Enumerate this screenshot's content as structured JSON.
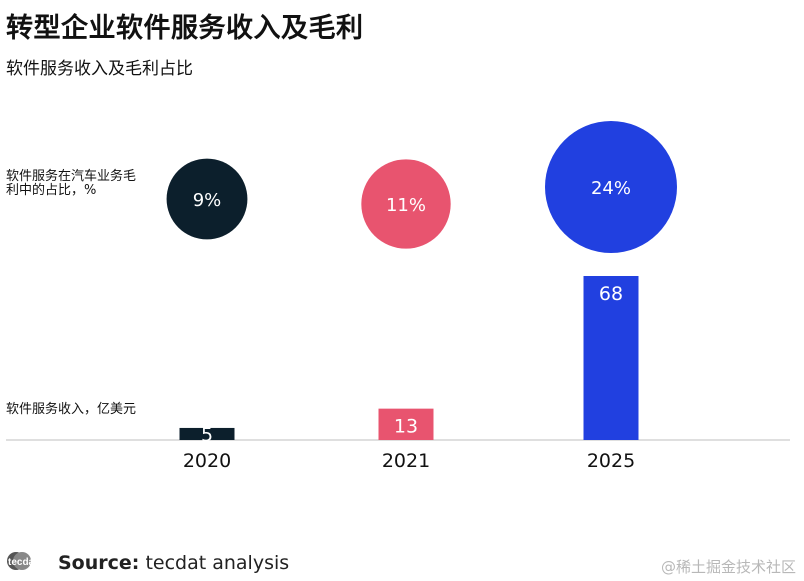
{
  "title": "转型企业软件服务收入及毛利",
  "subtitle": "软件服务收入及毛利占比",
  "row_labels": {
    "bubbles": "软件服务在汽车业务毛利中的占比，%",
    "bars": "软件服务收入，亿美元"
  },
  "footer": {
    "logo_text": "tecdat",
    "source_label": "Source:",
    "source_text": "tecdat analysis",
    "watermark": "@稀土掘金技术社区"
  },
  "colors": {
    "2020": "#0c1f2c",
    "2021": "#e8546f",
    "2025": "#2140e0",
    "baseline": "#cccccc"
  },
  "chart_data": {
    "type": "bar",
    "categories": [
      "2020",
      "2021",
      "2025"
    ],
    "series": [
      {
        "values": [
          5,
          13,
          68
        ]
      },
      {
        "values": [
          9,
          11,
          24
        ]
      }
    ],
    "bar_labels": [
      "5",
      "13",
      "68"
    ],
    "bubble_labels": [
      "9%",
      "11%",
      "24%"
    ],
    "bar_ylim": [
      0,
      68
    ]
  }
}
